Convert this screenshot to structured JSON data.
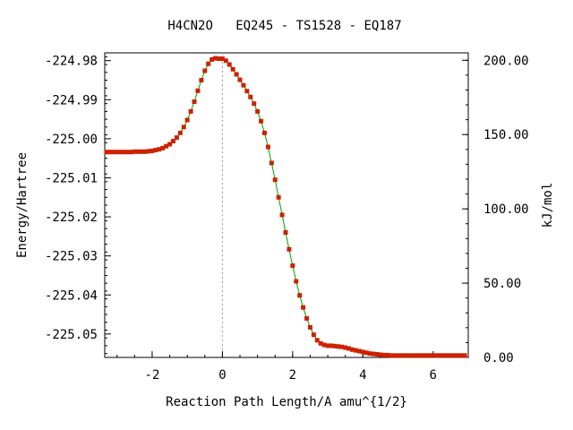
{
  "chart_data": {
    "type": "line",
    "title": "H4CN2O   EQ245 - TS1528 - EQ187",
    "xlabel": "Reaction Path Length/A amu^{1/2}",
    "ylabel": "Energy/Hartree",
    "y2label": "kJ/mol",
    "xlim": [
      -3.35,
      7.0
    ],
    "ylim": [
      -225.056,
      -224.978
    ],
    "y2lim": [
      0.0,
      205.0
    ],
    "x_ticks": [
      -2,
      0,
      2,
      4,
      6
    ],
    "x_tick_labels": [
      "-2",
      "0",
      "2",
      "4",
      "6"
    ],
    "y_ticks": [
      -224.98,
      -224.99,
      -225.0,
      -225.01,
      -225.02,
      -225.03,
      -225.04,
      -225.05
    ],
    "y_tick_labels": [
      "-224.98",
      "-224.99",
      "-225.00",
      "-225.01",
      "-225.02",
      "-225.03",
      "-225.04",
      "-225.05"
    ],
    "y2_ticks": [
      200,
      150,
      100,
      50,
      0
    ],
    "y2_tick_labels": [
      "200.00",
      "150.00",
      "100.00",
      "50.00",
      "0.00"
    ],
    "ts_marker_x": 0.0,
    "grid": false,
    "line_color": "#00a000",
    "marker_color": "#cc2200",
    "series": [
      {
        "x": [
          -3.3,
          -3.2,
          -3.1,
          -3.0,
          -2.9,
          -2.8,
          -2.7,
          -2.6,
          -2.5,
          -2.4,
          -2.3,
          -2.2,
          -2.1,
          -2.0,
          -1.9,
          -1.8,
          -1.7,
          -1.6,
          -1.5,
          -1.4,
          -1.3,
          -1.2,
          -1.1,
          -1.0,
          -0.9,
          -0.8,
          -0.7,
          -0.6,
          -0.5,
          -0.4,
          -0.3,
          -0.2,
          -0.1,
          0.0,
          0.1,
          0.2,
          0.3,
          0.4,
          0.5,
          0.6,
          0.7,
          0.8,
          0.9,
          1.0,
          1.1,
          1.2,
          1.3,
          1.4,
          1.5,
          1.6,
          1.7,
          1.8,
          1.9,
          2.0,
          2.1,
          2.2,
          2.3,
          2.4,
          2.5,
          2.6,
          2.7,
          2.8,
          2.9,
          3.0,
          3.1,
          3.2,
          3.3,
          3.4,
          3.5,
          3.6,
          3.7,
          3.8,
          3.9,
          4.0,
          4.1,
          4.2,
          4.3,
          4.4,
          4.5,
          4.6,
          4.7,
          4.8,
          4.9,
          5.0,
          5.1,
          5.2,
          5.3,
          5.4,
          5.5,
          5.6,
          5.7,
          5.8,
          5.9,
          6.0,
          6.1,
          6.2,
          6.3,
          6.4,
          6.5,
          6.6,
          6.7,
          6.8,
          6.9
        ],
        "y": [
          -225.0034,
          -225.0034,
          -225.0034,
          -225.0034,
          -225.0034,
          -225.0034,
          -225.0034,
          -225.0034,
          -225.0033,
          -225.0033,
          -225.0033,
          -225.0033,
          -225.0032,
          -225.0031,
          -225.0029,
          -225.0027,
          -225.0024,
          -225.0019,
          -225.0014,
          -225.0006,
          -224.9997,
          -224.9985,
          -224.997,
          -224.9952,
          -224.993,
          -224.9905,
          -224.9877,
          -224.985,
          -224.9826,
          -224.9808,
          -224.9797,
          -224.9794,
          -224.9795,
          -224.9795,
          -224.98,
          -224.981,
          -224.9822,
          -224.9835,
          -224.9849,
          -224.9863,
          -224.9878,
          -224.9893,
          -224.991,
          -224.993,
          -224.9955,
          -224.9985,
          -225.0021,
          -225.0062,
          -225.0105,
          -225.015,
          -225.0195,
          -225.024,
          -225.0283,
          -225.0325,
          -225.0365,
          -225.0401,
          -225.0432,
          -225.046,
          -225.0483,
          -225.0502,
          -225.0516,
          -225.0524,
          -225.0528,
          -225.053,
          -225.053,
          -225.0531,
          -225.0532,
          -225.0533,
          -225.0535,
          -225.0537,
          -225.054,
          -225.0542,
          -225.0544,
          -225.0546,
          -225.0548,
          -225.055,
          -225.0551,
          -225.0552,
          -225.0553,
          -225.0554,
          -225.0554,
          -225.0555,
          -225.0555,
          -225.0555,
          -225.0555,
          -225.0555,
          -225.0555,
          -225.0555,
          -225.0555,
          -225.0555,
          -225.0555,
          -225.0555,
          -225.0555,
          -225.0555,
          -225.0555,
          -225.0555,
          -225.0555,
          -225.0555,
          -225.0555,
          -225.0555,
          -225.0555,
          -225.0555,
          -225.0555
        ]
      }
    ]
  }
}
